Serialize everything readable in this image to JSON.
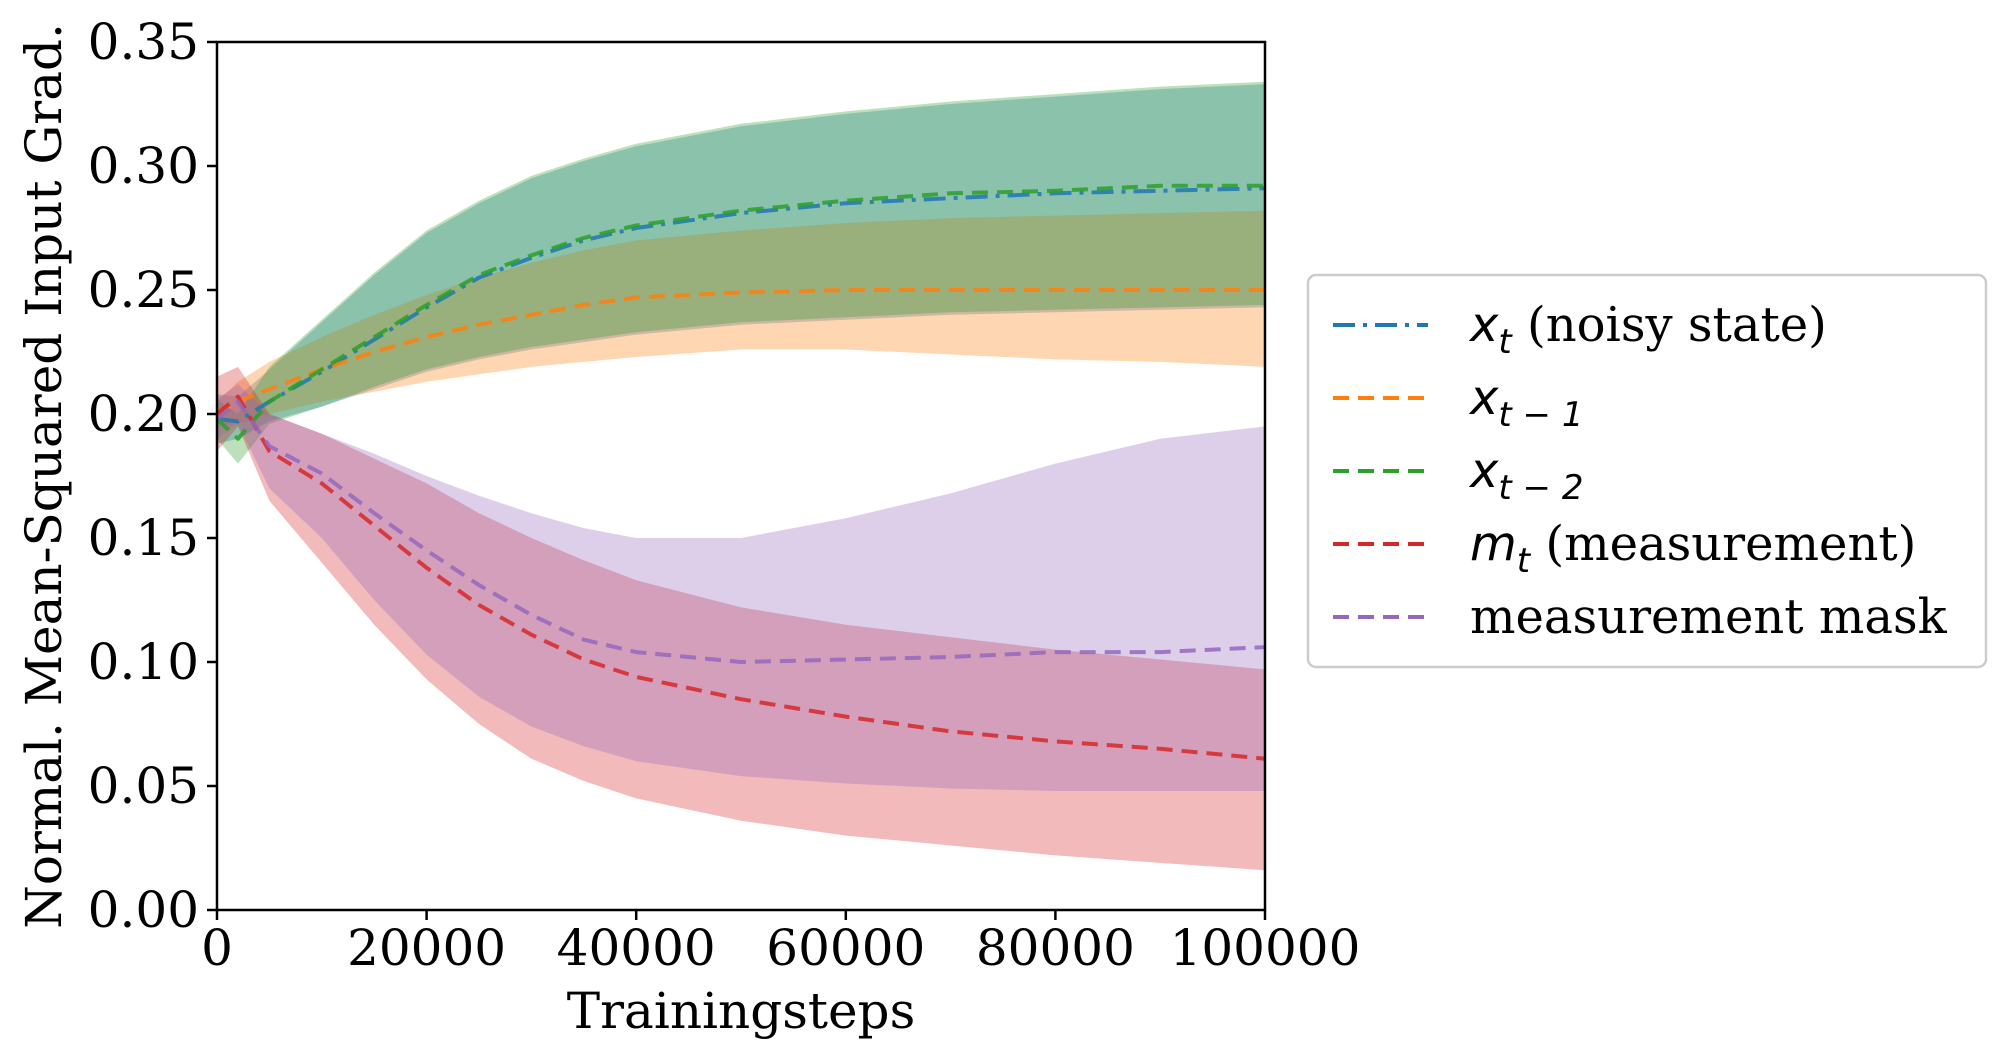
{
  "chart_data": {
    "type": "line",
    "title": "",
    "xlabel": "Trainingsteps",
    "ylabel": "Normal. Mean-Squared Input Grad.",
    "xlim": [
      0,
      100000
    ],
    "ylim": [
      0.0,
      0.35
    ],
    "x_ticks": [
      0,
      20000,
      40000,
      60000,
      80000,
      100000
    ],
    "x_tick_labels": [
      "0",
      "20000",
      "40000",
      "60000",
      "80000",
      "100000"
    ],
    "y_ticks": [
      0.0,
      0.05,
      0.1,
      0.15,
      0.2,
      0.25,
      0.3,
      0.35
    ],
    "y_tick_labels": [
      "0.00",
      "0.05",
      "0.10",
      "0.15",
      "0.20",
      "0.25",
      "0.30",
      "0.35"
    ],
    "grid": false,
    "legend_position": "right-outside",
    "x": [
      0,
      2000,
      5000,
      10000,
      15000,
      20000,
      25000,
      30000,
      35000,
      40000,
      50000,
      60000,
      70000,
      80000,
      90000,
      100000
    ],
    "series": [
      {
        "name": "x_t (noisy state)",
        "legend_main": "x",
        "legend_sub": "t",
        "legend_suffix": " (noisy state)",
        "color": "#1f77b4",
        "style": "dashdot",
        "mean": [
          0.198,
          0.197,
          0.205,
          0.217,
          0.23,
          0.243,
          0.255,
          0.263,
          0.27,
          0.275,
          0.281,
          0.285,
          0.287,
          0.289,
          0.29,
          0.291
        ],
        "lower": [
          0.188,
          0.19,
          0.197,
          0.203,
          0.21,
          0.217,
          0.222,
          0.226,
          0.229,
          0.232,
          0.236,
          0.238,
          0.24,
          0.241,
          0.242,
          0.243
        ],
        "upper": [
          0.208,
          0.207,
          0.218,
          0.237,
          0.256,
          0.273,
          0.285,
          0.295,
          0.302,
          0.308,
          0.316,
          0.321,
          0.325,
          0.328,
          0.331,
          0.333
        ]
      },
      {
        "name": "x_{t-1}",
        "legend_main": "x",
        "legend_sub": "t − 1",
        "legend_suffix": "",
        "color": "#ff7f0e",
        "style": "dashed",
        "mean": [
          0.2,
          0.205,
          0.21,
          0.218,
          0.225,
          0.231,
          0.236,
          0.24,
          0.244,
          0.247,
          0.249,
          0.25,
          0.25,
          0.25,
          0.25,
          0.25
        ],
        "lower": [
          0.195,
          0.196,
          0.2,
          0.205,
          0.209,
          0.213,
          0.216,
          0.219,
          0.221,
          0.223,
          0.226,
          0.226,
          0.224,
          0.222,
          0.221,
          0.219
        ],
        "upper": [
          0.205,
          0.213,
          0.221,
          0.231,
          0.24,
          0.248,
          0.255,
          0.261,
          0.266,
          0.27,
          0.274,
          0.277,
          0.279,
          0.28,
          0.281,
          0.282
        ]
      },
      {
        "name": "x_{t-2}",
        "legend_main": "x",
        "legend_sub": "t − 2",
        "legend_suffix": "",
        "color": "#2ca02c",
        "style": "dashed",
        "mean": [
          0.198,
          0.19,
          0.205,
          0.218,
          0.231,
          0.244,
          0.256,
          0.264,
          0.271,
          0.276,
          0.282,
          0.286,
          0.289,
          0.29,
          0.292,
          0.292
        ],
        "lower": [
          0.19,
          0.18,
          0.196,
          0.203,
          0.211,
          0.218,
          0.223,
          0.227,
          0.23,
          0.233,
          0.237,
          0.239,
          0.241,
          0.242,
          0.243,
          0.244
        ],
        "upper": [
          0.206,
          0.2,
          0.219,
          0.238,
          0.257,
          0.274,
          0.286,
          0.296,
          0.303,
          0.309,
          0.317,
          0.322,
          0.326,
          0.329,
          0.332,
          0.334
        ]
      },
      {
        "name": "m_t (measurement)",
        "legend_main": "m",
        "legend_sub": "t",
        "legend_suffix": " (measurement)",
        "color": "#d62728",
        "style": "dashed",
        "mean": [
          0.2,
          0.207,
          0.185,
          0.172,
          0.155,
          0.138,
          0.123,
          0.111,
          0.101,
          0.094,
          0.085,
          0.078,
          0.072,
          0.068,
          0.065,
          0.061
        ],
        "lower": [
          0.185,
          0.195,
          0.165,
          0.14,
          0.115,
          0.093,
          0.075,
          0.061,
          0.052,
          0.045,
          0.036,
          0.03,
          0.026,
          0.022,
          0.019,
          0.016
        ],
        "upper": [
          0.215,
          0.219,
          0.2,
          0.192,
          0.182,
          0.172,
          0.16,
          0.15,
          0.141,
          0.133,
          0.122,
          0.115,
          0.11,
          0.105,
          0.101,
          0.097
        ]
      },
      {
        "name": "measurement mask",
        "legend_main": "",
        "legend_sub": "",
        "legend_suffix": "measurement mask",
        "color": "#9467bd",
        "style": "dashed",
        "mean": [
          0.198,
          0.205,
          0.187,
          0.176,
          0.16,
          0.145,
          0.131,
          0.119,
          0.109,
          0.104,
          0.1,
          0.101,
          0.102,
          0.104,
          0.104,
          0.106
        ],
        "lower": [
          0.19,
          0.196,
          0.17,
          0.15,
          0.125,
          0.103,
          0.086,
          0.074,
          0.066,
          0.06,
          0.054,
          0.051,
          0.049,
          0.048,
          0.048,
          0.048
        ],
        "upper": [
          0.206,
          0.212,
          0.2,
          0.192,
          0.184,
          0.175,
          0.167,
          0.16,
          0.154,
          0.15,
          0.15,
          0.158,
          0.168,
          0.18,
          0.19,
          0.195
        ]
      }
    ]
  }
}
